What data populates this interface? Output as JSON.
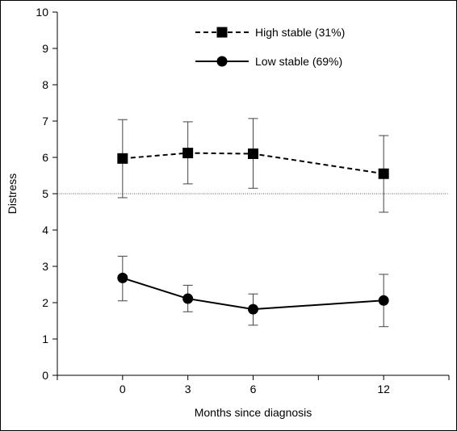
{
  "chart_data": {
    "type": "line",
    "xlabel": "Months since diagnosis",
    "ylabel": "Distress",
    "x": [
      0,
      3,
      6,
      12
    ],
    "xticks": [
      "0",
      "3",
      "6",
      "12"
    ],
    "xlim": [
      -3,
      15
    ],
    "ylim": [
      0,
      10
    ],
    "yticks": [
      "0",
      "1",
      "2",
      "3",
      "4",
      "5",
      "6",
      "7",
      "8",
      "9",
      "10"
    ],
    "reference_line": {
      "y": 5,
      "style": "dotted"
    },
    "grid": false,
    "legend_position": "top-right",
    "series": [
      {
        "name": "High stable (31%)",
        "marker": "square",
        "line_style": "dashed",
        "values": [
          5.97,
          6.12,
          6.1,
          5.55
        ],
        "error_low": [
          4.89,
          5.27,
          5.15,
          4.49
        ],
        "error_high": [
          7.04,
          6.98,
          7.07,
          6.6
        ]
      },
      {
        "name": "Low stable (69%)",
        "marker": "circle",
        "line_style": "solid",
        "values": [
          2.68,
          2.11,
          1.82,
          2.06
        ],
        "error_low": [
          2.05,
          1.75,
          1.38,
          1.34
        ],
        "error_high": [
          3.28,
          2.48,
          2.24,
          2.78
        ]
      }
    ],
    "colors": {
      "line": "#000000",
      "errorbar": "#444444",
      "reference": "#555555"
    }
  }
}
